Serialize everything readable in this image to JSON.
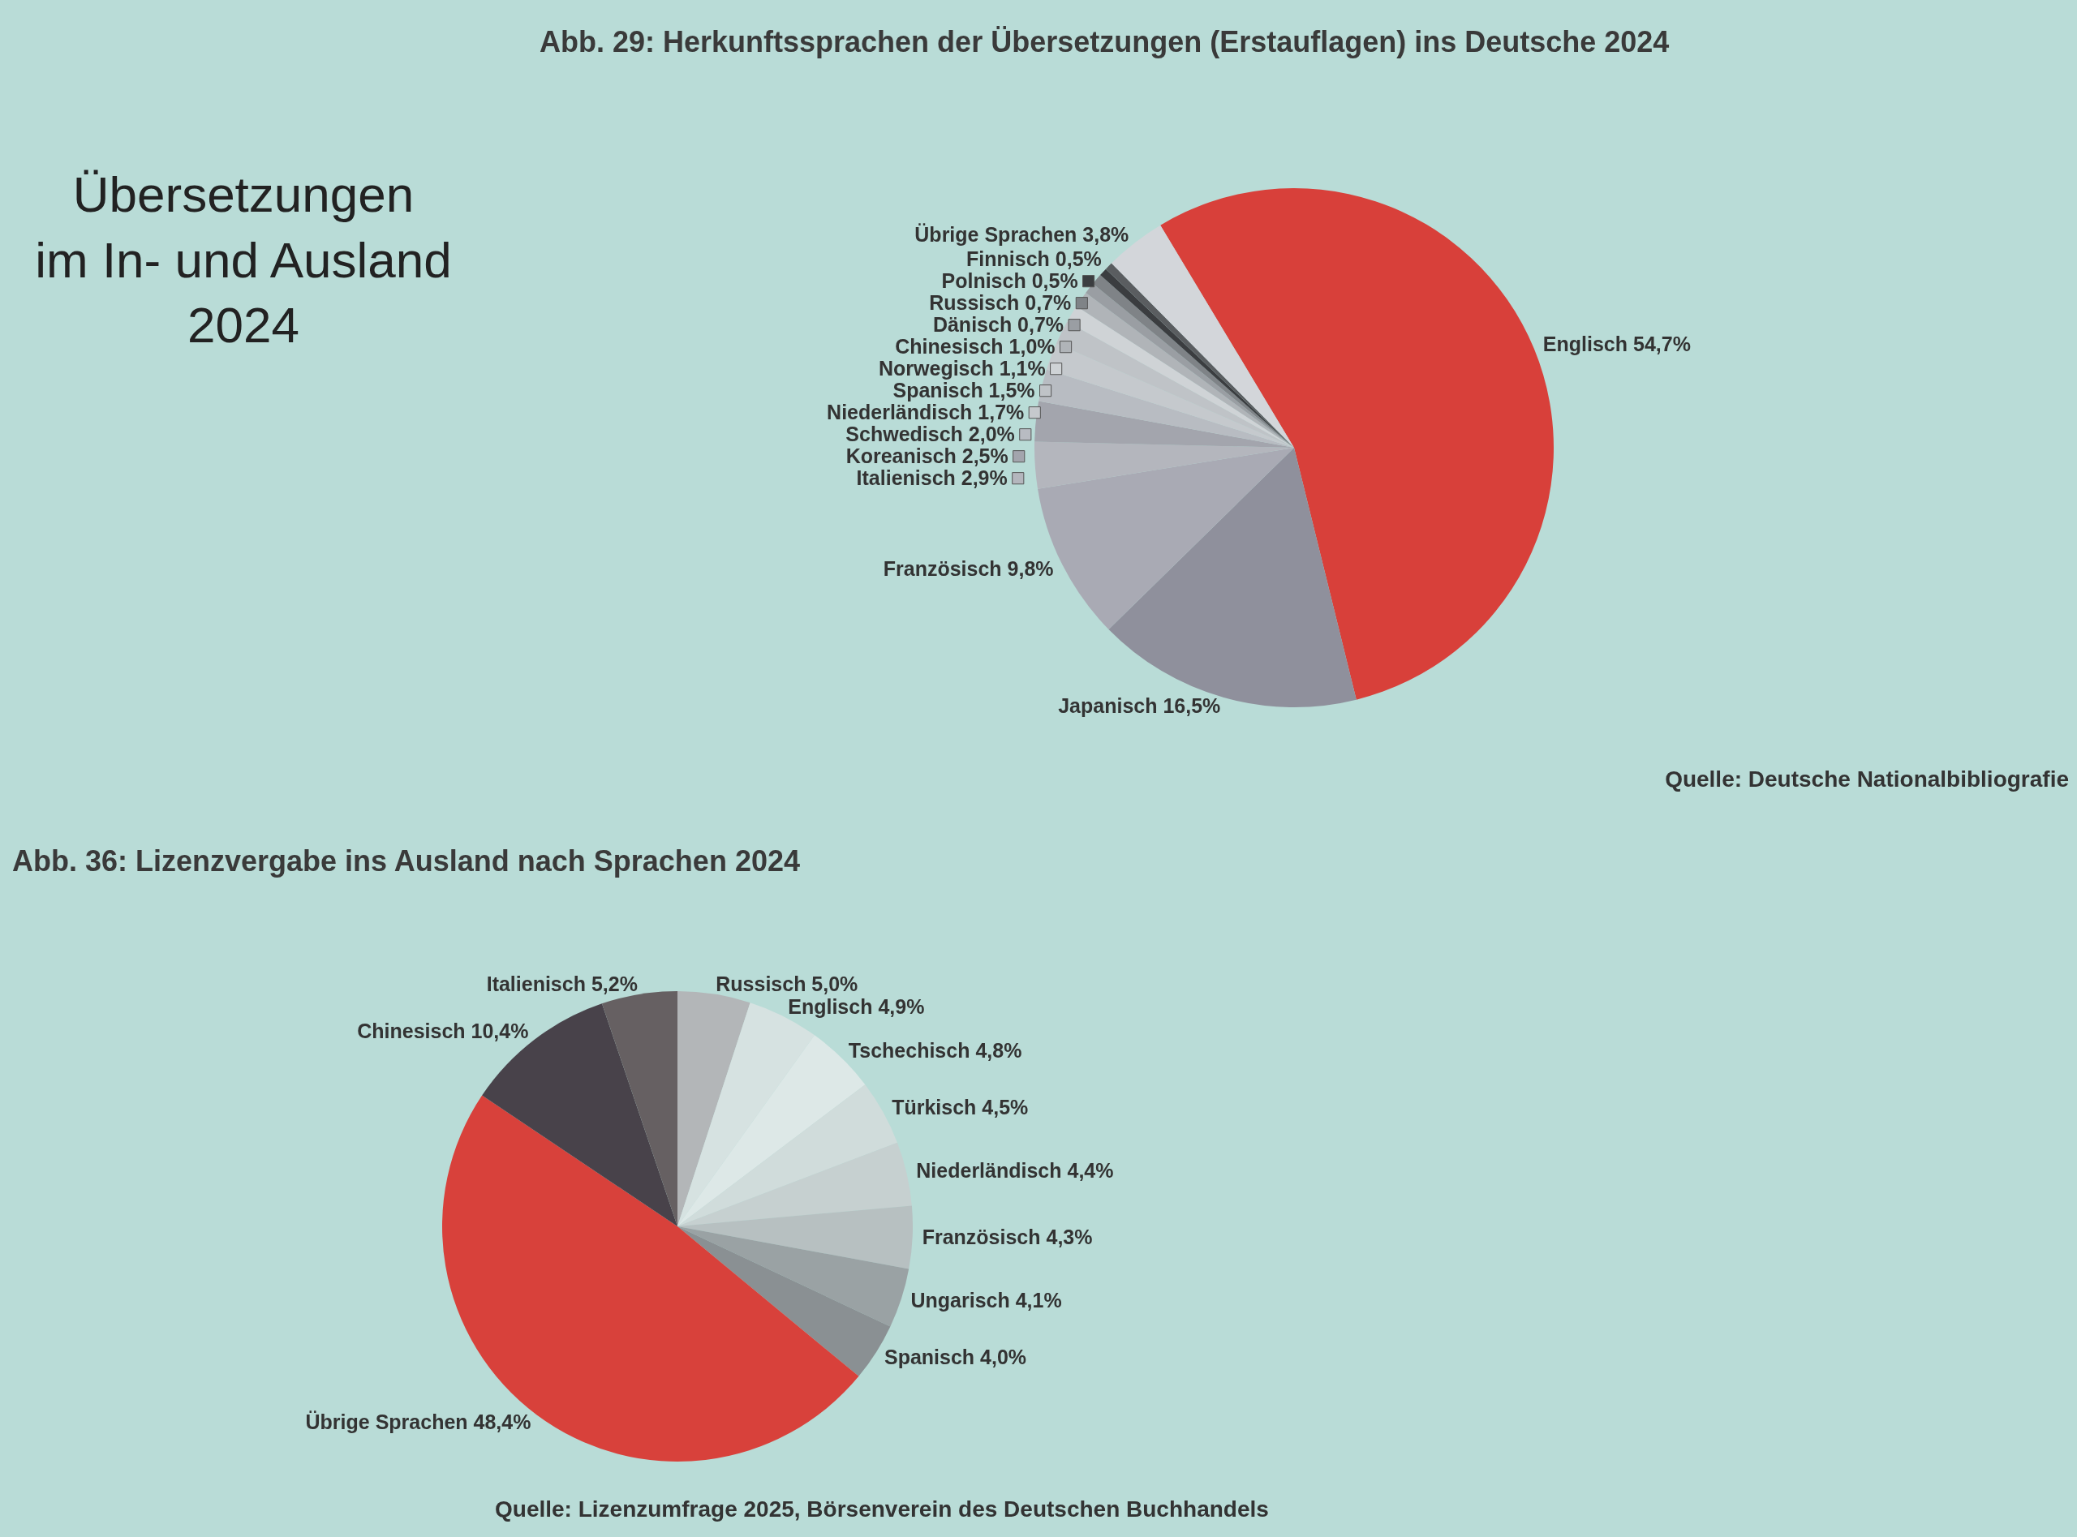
{
  "chart_data": [
    {
      "type": "other",
      "title": "Übersetzungen\nim In- und Ausland\n2024"
    },
    {
      "type": "pie",
      "title": "Abb. 29: Herkunftssprachen der Übersetzungen (Erstauflagen) ins Deutsche 2024",
      "categories": [
        "Englisch",
        "Japanisch",
        "Französisch",
        "Italienisch",
        "Koreanisch",
        "Schwedisch",
        "Niederländisch",
        "Spanisch",
        "Norwegisch",
        "Chinesisch",
        "Dänisch",
        "Russisch",
        "Polnisch",
        "Finnisch",
        "Übrige Sprachen"
      ],
      "values": [
        54.7,
        16.5,
        9.8,
        2.9,
        2.5,
        2.0,
        1.7,
        1.5,
        1.1,
        1.0,
        0.7,
        0.7,
        0.5,
        0.5,
        3.8
      ],
      "value_labels": [
        "54,7%",
        "16,5%",
        "9,8%",
        "2,9%",
        "2,5%",
        "2,0%",
        "1,7%",
        "1,5%",
        "1,1%",
        "1,0%",
        "0,7%",
        "0,7%",
        "0,5%",
        "0,5%",
        "3,8%"
      ],
      "colors": [
        "#d8403a",
        "#8f909c",
        "#a9aab4",
        "#b4b6bd",
        "#a3a5ad",
        "#b8bcc2",
        "#c5c9cd",
        "#bfc3c7",
        "#cfd3d6",
        "#b0b4b8",
        "#9a9ea3",
        "#7f8387",
        "#3b3d40",
        "#5a5d60",
        "#d3d6da"
      ],
      "legend": "left",
      "annotations": [
        "Quelle: Deutsche Nationalbibliografie"
      ]
    },
    {
      "type": "pie",
      "title": "Abb. 36: Lizenzvergabe ins Ausland nach Sprachen 2024",
      "categories": [
        "Russisch",
        "Englisch",
        "Tschechisch",
        "Türkisch",
        "Niederländisch",
        "Französisch",
        "Ungarisch",
        "Spanisch",
        "Übrige Sprachen",
        "Chinesisch",
        "Italienisch"
      ],
      "values": [
        5.0,
        4.9,
        4.8,
        4.5,
        4.4,
        4.3,
        4.1,
        4.0,
        48.4,
        10.4,
        5.2
      ],
      "value_labels": [
        "5,0%",
        "4,9%",
        "4,8%",
        "4,5%",
        "4,4%",
        "4,3%",
        "4,1%",
        "4,0%",
        "48,4%",
        "10,4%",
        "5,2%"
      ],
      "colors": [
        "#b3b6b8",
        "#d6e2e1",
        "#dde8e7",
        "#d0dcdb",
        "#c6d0d0",
        "#b7c0c1",
        "#9aa2a4",
        "#8a9093",
        "#d8413b",
        "#48424a",
        "#666062"
      ],
      "annotations": [
        "Quelle: Lizenzumfrage 2025, Börsenverein des Deutschen Buchhandels"
      ]
    }
  ]
}
